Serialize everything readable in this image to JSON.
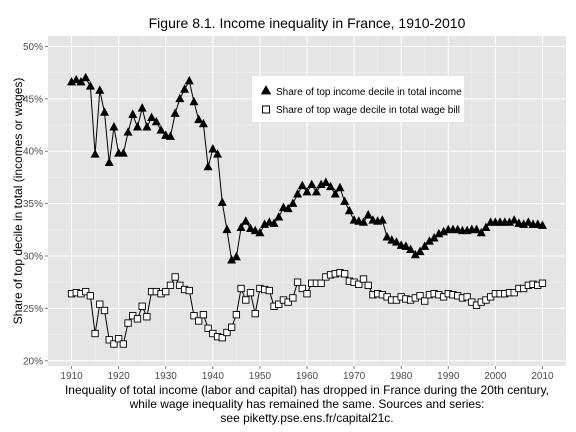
{
  "chart_data": {
    "type": "line",
    "title": "Figure 8.1. Income inequality in France, 1910-2010",
    "ylabel": "Share of top decile in total (incomes or wages)",
    "xlabel_lines": [
      "Inequality of total income (labor and capital) has dropped in France during the 20th century,",
      "while wage inequality has remained the same. Sources and series:",
      "see piketty.pse.ens.fr/capital21c."
    ],
    "xlim": [
      1905,
      2015
    ],
    "ylim": [
      0.195,
      0.51
    ],
    "x_ticks": [
      1910,
      1920,
      1930,
      1940,
      1950,
      1960,
      1970,
      1980,
      1990,
      2000,
      2010
    ],
    "x_tick_labels": [
      "1910",
      "1920",
      "1930",
      "1940",
      "1950",
      "1960",
      "1970",
      "1980",
      "1990",
      "2000",
      "2010"
    ],
    "y_ticks": [
      0.2,
      0.25,
      0.3,
      0.35,
      0.4,
      0.45,
      0.5
    ],
    "y_tick_labels": [
      "20%",
      "25%",
      "30%",
      "35%",
      "40%",
      "45%",
      "50%"
    ],
    "grid": true,
    "background": "#e5e5e5",
    "legend_position": "top-right inside",
    "series": [
      {
        "name": "Share of top income decile in total income",
        "marker": "filled-triangle",
        "color": "#000000",
        "x": [
          1910,
          1911,
          1912,
          1913,
          1914,
          1915,
          1916,
          1917,
          1918,
          1919,
          1920,
          1921,
          1922,
          1923,
          1924,
          1925,
          1926,
          1927,
          1928,
          1929,
          1930,
          1931,
          1932,
          1933,
          1934,
          1935,
          1936,
          1937,
          1938,
          1939,
          1940,
          1941,
          1942,
          1943,
          1944,
          1945,
          1946,
          1947,
          1948,
          1949,
          1950,
          1951,
          1952,
          1953,
          1954,
          1955,
          1956,
          1957,
          1958,
          1959,
          1960,
          1961,
          1962,
          1963,
          1964,
          1965,
          1966,
          1967,
          1968,
          1969,
          1970,
          1971,
          1972,
          1973,
          1974,
          1975,
          1976,
          1977,
          1978,
          1979,
          1980,
          1981,
          1982,
          1983,
          1984,
          1985,
          1986,
          1987,
          1988,
          1989,
          1990,
          1991,
          1992,
          1993,
          1994,
          1995,
          1996,
          1997,
          1998,
          1999,
          2000,
          2001,
          2002,
          2003,
          2004,
          2005,
          2006,
          2007,
          2008,
          2009,
          2010
        ],
        "values": [
          0.466,
          0.468,
          0.466,
          0.47,
          0.462,
          0.397,
          0.458,
          0.437,
          0.389,
          0.423,
          0.398,
          0.398,
          0.418,
          0.435,
          0.423,
          0.441,
          0.423,
          0.432,
          0.428,
          0.42,
          0.415,
          0.414,
          0.436,
          0.45,
          0.459,
          0.467,
          0.447,
          0.43,
          0.426,
          0.385,
          0.402,
          0.397,
          0.351,
          0.325,
          0.296,
          0.299,
          0.327,
          0.333,
          0.326,
          0.324,
          0.322,
          0.33,
          0.332,
          0.331,
          0.337,
          0.346,
          0.345,
          0.35,
          0.359,
          0.367,
          0.361,
          0.368,
          0.361,
          0.368,
          0.37,
          0.366,
          0.359,
          0.365,
          0.352,
          0.343,
          0.334,
          0.333,
          0.332,
          0.339,
          0.334,
          0.333,
          0.334,
          0.318,
          0.315,
          0.313,
          0.31,
          0.309,
          0.306,
          0.301,
          0.304,
          0.309,
          0.314,
          0.317,
          0.321,
          0.323,
          0.325,
          0.325,
          0.325,
          0.324,
          0.324,
          0.325,
          0.325,
          0.322,
          0.327,
          0.332,
          0.332,
          0.332,
          0.332,
          0.332,
          0.334,
          0.331,
          0.33,
          0.332,
          0.33,
          0.33,
          0.329
        ]
      },
      {
        "name": "Share of top wage decile in total wage bill",
        "marker": "hollow-square",
        "color": "#000000",
        "x": [
          1910,
          1911,
          1912,
          1913,
          1914,
          1915,
          1916,
          1917,
          1918,
          1919,
          1920,
          1921,
          1922,
          1923,
          1924,
          1925,
          1926,
          1927,
          1928,
          1929,
          1930,
          1931,
          1932,
          1933,
          1934,
          1935,
          1936,
          1937,
          1938,
          1939,
          1940,
          1941,
          1942,
          1943,
          1944,
          1945,
          1946,
          1947,
          1948,
          1949,
          1950,
          1951,
          1952,
          1953,
          1954,
          1955,
          1956,
          1957,
          1958,
          1959,
          1960,
          1961,
          1962,
          1963,
          1964,
          1965,
          1966,
          1967,
          1968,
          1969,
          1970,
          1971,
          1972,
          1973,
          1974,
          1975,
          1976,
          1977,
          1978,
          1979,
          1980,
          1981,
          1982,
          1983,
          1984,
          1985,
          1986,
          1987,
          1988,
          1989,
          1990,
          1991,
          1992,
          1993,
          1994,
          1995,
          1996,
          1997,
          1998,
          1999,
          2000,
          2001,
          2002,
          2003,
          2004,
          2005,
          2006,
          2007,
          2008,
          2009,
          2010
        ],
        "values": [
          0.264,
          0.265,
          0.264,
          0.266,
          0.262,
          0.226,
          0.254,
          0.248,
          0.22,
          0.216,
          0.221,
          0.216,
          0.236,
          0.243,
          0.24,
          0.252,
          0.242,
          0.266,
          0.266,
          0.264,
          0.266,
          0.272,
          0.28,
          0.272,
          0.268,
          0.267,
          0.243,
          0.238,
          0.244,
          0.231,
          0.226,
          0.223,
          0.222,
          0.227,
          0.232,
          0.244,
          0.269,
          0.258,
          0.265,
          0.245,
          0.269,
          0.268,
          0.267,
          0.252,
          0.254,
          0.258,
          0.256,
          0.26,
          0.275,
          0.269,
          0.264,
          0.274,
          0.274,
          0.274,
          0.28,
          0.282,
          0.283,
          0.284,
          0.283,
          0.276,
          0.275,
          0.273,
          0.278,
          0.272,
          0.263,
          0.264,
          0.263,
          0.261,
          0.258,
          0.258,
          0.261,
          0.259,
          0.258,
          0.26,
          0.262,
          0.257,
          0.263,
          0.264,
          0.263,
          0.261,
          0.264,
          0.263,
          0.262,
          0.26,
          0.261,
          0.256,
          0.253,
          0.256,
          0.258,
          0.261,
          0.264,
          0.264,
          0.264,
          0.265,
          0.265,
          0.269,
          0.269,
          0.272,
          0.273,
          0.272,
          0.274
        ]
      }
    ]
  }
}
